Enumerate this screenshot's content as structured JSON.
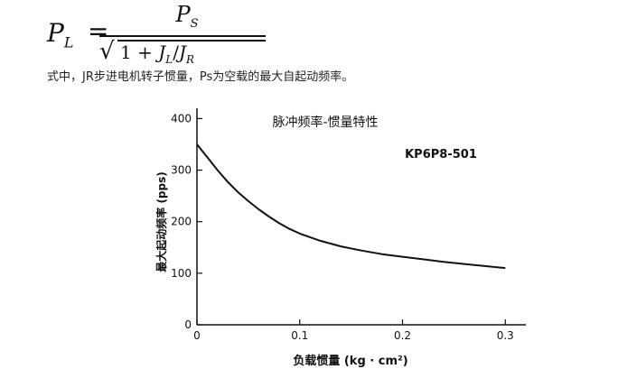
{
  "formula": {
    "lhs": "P",
    "lhs_sub": "L",
    "eq": "=",
    "num": "P",
    "num_sub": "S",
    "den_one": "1 + ",
    "den_j1": "J",
    "den_j1_sub": "L",
    "den_slash": "/",
    "den_j2": "J",
    "den_j2_sub": "R"
  },
  "caption": "式中，JR步进电机转子惯量，Ps为空载的最大自起动频率。",
  "chart_data": {
    "type": "line",
    "title": "脉冲频率-惯量特性",
    "annotation": "KP6P8-501",
    "xlabel": "负载惯量 (kg · cm²)",
    "ylabel": "最大起动频率 (pps)",
    "xlim": [
      0,
      0.32
    ],
    "ylim": [
      0,
      420
    ],
    "xticks": [
      0,
      0.1,
      0.2,
      0.3
    ],
    "xtick_labels": [
      "0",
      "0.1",
      "0.2",
      "0.3"
    ],
    "yticks": [
      0,
      100,
      200,
      300,
      400
    ],
    "ytick_labels": [
      "0",
      "100",
      "200",
      "300",
      "400"
    ],
    "grid": false,
    "series": [
      {
        "x": [
          0,
          0.01,
          0.02,
          0.03,
          0.04,
          0.05,
          0.06,
          0.07,
          0.08,
          0.09,
          0.1,
          0.12,
          0.14,
          0.16,
          0.18,
          0.2,
          0.22,
          0.24,
          0.26,
          0.28,
          0.3
        ],
        "y": [
          350,
          325,
          300,
          277,
          257,
          240,
          224,
          210,
          197,
          186,
          177,
          163,
          152,
          144,
          137,
          132,
          127,
          122,
          118,
          114,
          110
        ]
      }
    ],
    "colors": {
      "line": "#111111",
      "axis": "#111111"
    }
  }
}
